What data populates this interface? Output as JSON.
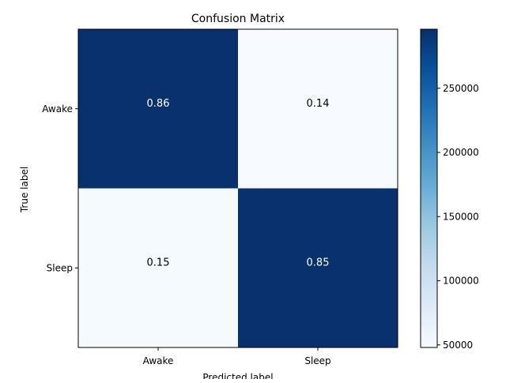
{
  "chart_data": {
    "type": "heatmap",
    "title": "Confusion Matrix",
    "xlabel": "Predicted label",
    "ylabel": "True label",
    "x_categories": [
      "Awake",
      "Sleep"
    ],
    "y_categories": [
      "Awake",
      "Sleep"
    ],
    "cell_labels": [
      [
        "0.86",
        "0.14"
      ],
      [
        "0.15",
        "0.85"
      ]
    ],
    "cell_values": [
      [
        295000,
        48000
      ],
      [
        50000,
        295000
      ]
    ],
    "colorbar": {
      "colormap": "Blues",
      "range": [
        48000,
        296000
      ],
      "ticks": [
        "50000",
        "100000",
        "150000",
        "200000",
        "250000"
      ],
      "tick_values": [
        50000,
        100000,
        150000,
        200000,
        250000
      ]
    },
    "colors": {
      "low": "#f7fbff",
      "high": "#08306b",
      "text_on_dark": "#ffffff",
      "text_on_light": "#000000"
    }
  }
}
